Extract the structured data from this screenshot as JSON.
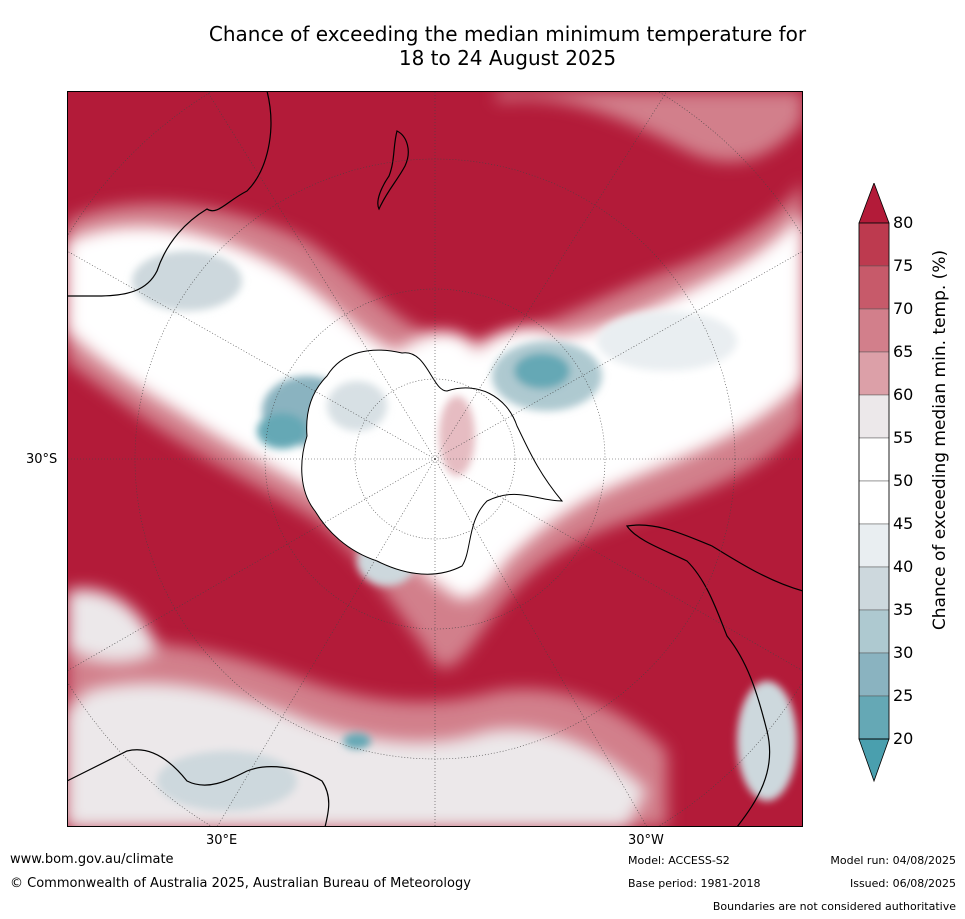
{
  "title_line1": "Chance of exceeding the median minimum temperature for",
  "title_line2": "18 to 24 August 2025",
  "map": {
    "lat_label": "30°S",
    "lon_label_east": "30°E",
    "lon_label_west": "30°W",
    "colors": {
      "red_strong": "#b31b39",
      "red_mid": "#c75a6a",
      "red_light": "#dca0a8",
      "neutral": "#ece8ea",
      "white": "#ffffff",
      "blue_light": "#cdd8dd",
      "blue_mid": "#8ab3c0",
      "blue_strong": "#4a9fae"
    }
  },
  "colorbar": {
    "label": "Chance of exceeding median min. temp. (%)",
    "ticks": [
      "80",
      "75",
      "70",
      "65",
      "60",
      "55",
      "50",
      "45",
      "40",
      "35",
      "30",
      "25",
      "20"
    ],
    "colors": [
      "#b31b39",
      "#bd3a4f",
      "#c75a6a",
      "#d27f8b",
      "#dca0a8",
      "#ece8ea",
      "#ffffff",
      "#ffffff",
      "#e9eef1",
      "#cdd8dd",
      "#aec9d0",
      "#8ab3c0",
      "#65a8b5",
      "#4a9fae"
    ]
  },
  "footer": {
    "url": "www.bom.gov.au/climate",
    "copyright": "© Commonwealth of Australia 2025, Australian Bureau of Meteorology",
    "model": "Model: ACCESS-S2",
    "base_period": "Base period: 1981-2018",
    "model_run": "Model run: 04/08/2025",
    "issued": "Issued: 06/08/2025",
    "disclaimer": "Boundaries are not considered authoritative"
  }
}
